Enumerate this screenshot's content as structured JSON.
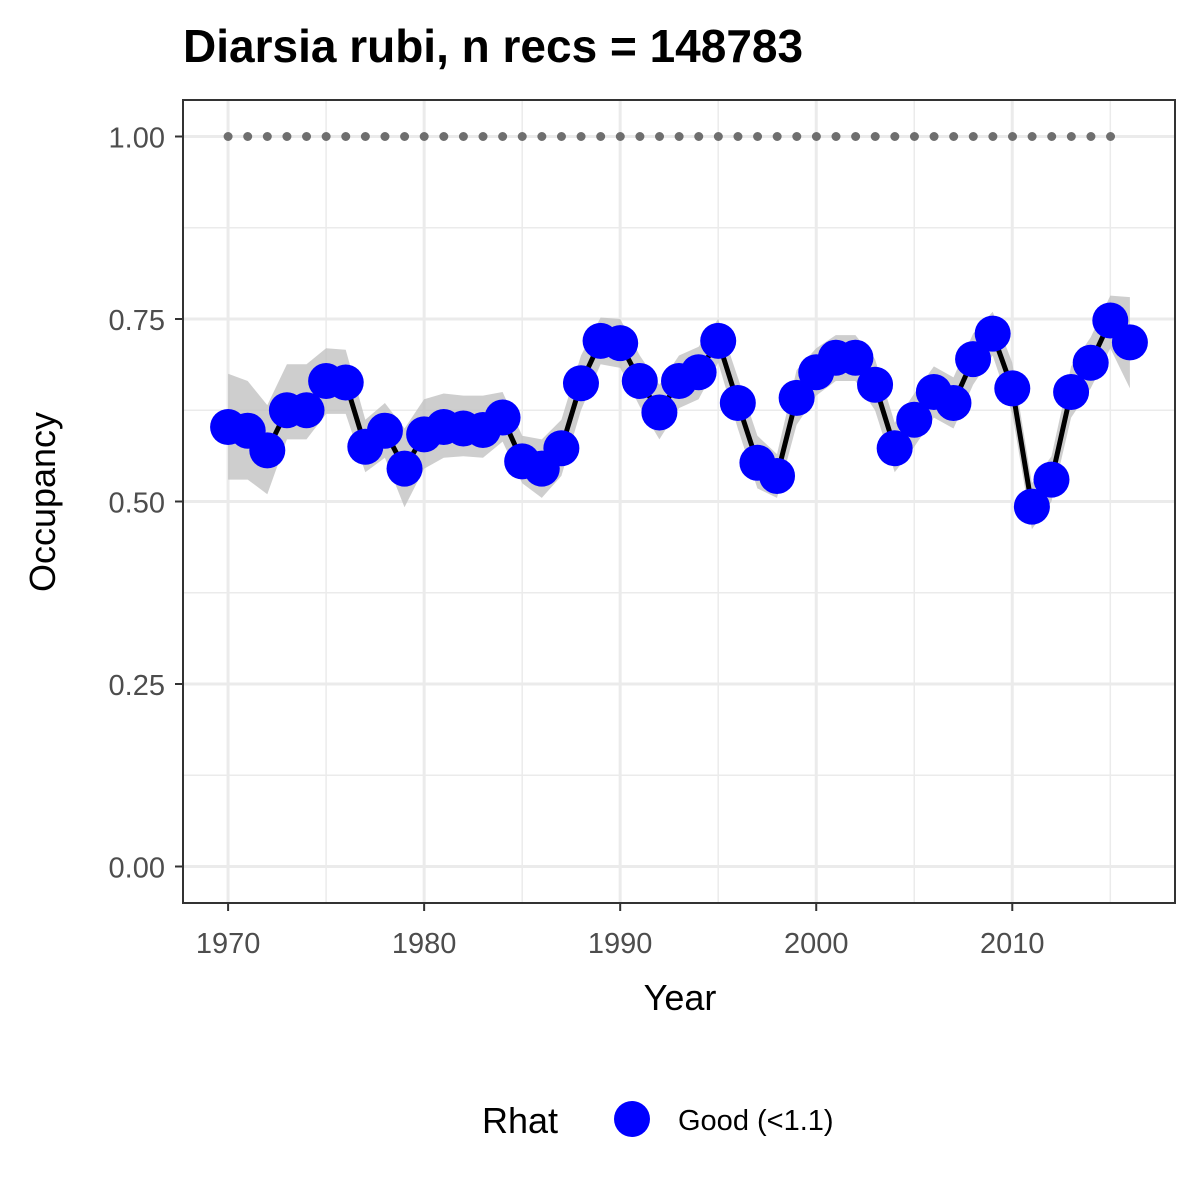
{
  "chart_data": {
    "type": "line",
    "title": "Diarsia rubi, n recs = 148783",
    "xlabel": "Year",
    "ylabel": "Occupancy",
    "xlim": [
      1967.7,
      2018.3
    ],
    "ylim": [
      -0.05,
      1.05
    ],
    "x_ticks": [
      1970,
      1980,
      1990,
      2000,
      2010
    ],
    "x_tick_labels": [
      "1970",
      "1980",
      "1990",
      "2000",
      "2010"
    ],
    "y_ticks": [
      0,
      0.25,
      0.5,
      0.75,
      1.0
    ],
    "y_tick_labels": [
      "0.00",
      "0.25",
      "0.50",
      "0.75",
      "1.00"
    ],
    "y_minor_ticks": [
      0.125,
      0.375,
      0.625,
      0.875
    ],
    "x_minor_ticks": [
      1975,
      1985,
      1995,
      2005,
      2015
    ],
    "grid": true,
    "x": [
      1970,
      1971,
      1972,
      1973,
      1974,
      1975,
      1976,
      1977,
      1978,
      1979,
      1980,
      1981,
      1982,
      1983,
      1984,
      1985,
      1986,
      1987,
      1988,
      1989,
      1990,
      1991,
      1992,
      1993,
      1994,
      1995,
      1996,
      1997,
      1998,
      1999,
      2000,
      2001,
      2002,
      2003,
      2004,
      2005,
      2006,
      2007,
      2008,
      2009,
      2010,
      2011,
      2012,
      2013,
      2014,
      2015,
      2016
    ],
    "series": [
      {
        "values": [
          0.602,
          0.597,
          0.57,
          0.625,
          0.625,
          0.665,
          0.663,
          0.575,
          0.597,
          0.545,
          0.592,
          0.602,
          0.6,
          0.598,
          0.615,
          0.555,
          0.545,
          0.573,
          0.662,
          0.72,
          0.717,
          0.665,
          0.622,
          0.665,
          0.677,
          0.72,
          0.635,
          0.553,
          0.535,
          0.642,
          0.677,
          0.697,
          0.697,
          0.66,
          0.573,
          0.612,
          0.65,
          0.635,
          0.695,
          0.73,
          0.655,
          0.493,
          0.53,
          0.65,
          0.69,
          0.748,
          0.718
        ],
        "lower": [
          0.53,
          0.53,
          0.51,
          0.585,
          0.585,
          0.62,
          0.62,
          0.54,
          0.56,
          0.492,
          0.545,
          0.56,
          0.562,
          0.56,
          0.582,
          0.525,
          0.505,
          0.535,
          0.625,
          0.688,
          0.683,
          0.63,
          0.585,
          0.628,
          0.64,
          0.69,
          0.6,
          0.518,
          0.505,
          0.605,
          0.645,
          0.665,
          0.665,
          0.625,
          0.54,
          0.575,
          0.615,
          0.6,
          0.66,
          0.7,
          0.62,
          0.462,
          0.5,
          0.615,
          0.655,
          0.71,
          0.655
        ],
        "upper": [
          0.675,
          0.665,
          0.632,
          0.688,
          0.688,
          0.71,
          0.708,
          0.612,
          0.635,
          0.6,
          0.64,
          0.648,
          0.645,
          0.645,
          0.65,
          0.59,
          0.585,
          0.612,
          0.7,
          0.752,
          0.75,
          0.7,
          0.66,
          0.7,
          0.712,
          0.75,
          0.67,
          0.59,
          0.565,
          0.68,
          0.71,
          0.728,
          0.728,
          0.695,
          0.608,
          0.648,
          0.685,
          0.67,
          0.73,
          0.76,
          0.69,
          0.525,
          0.562,
          0.685,
          0.725,
          0.782,
          0.78
        ],
        "line_color": "#000000",
        "point_color": "#0000ff",
        "ribbon_color": "#bebebe"
      }
    ],
    "reference_line": {
      "y": 1.0,
      "style": "dotted",
      "color": "#6e6e6e",
      "x_range": [
        1970,
        2016
      ]
    },
    "legend": {
      "position": "bottom",
      "title": "Rhat",
      "items": [
        {
          "label": "Good (<1.1)",
          "color": "#0000ff"
        }
      ]
    }
  }
}
